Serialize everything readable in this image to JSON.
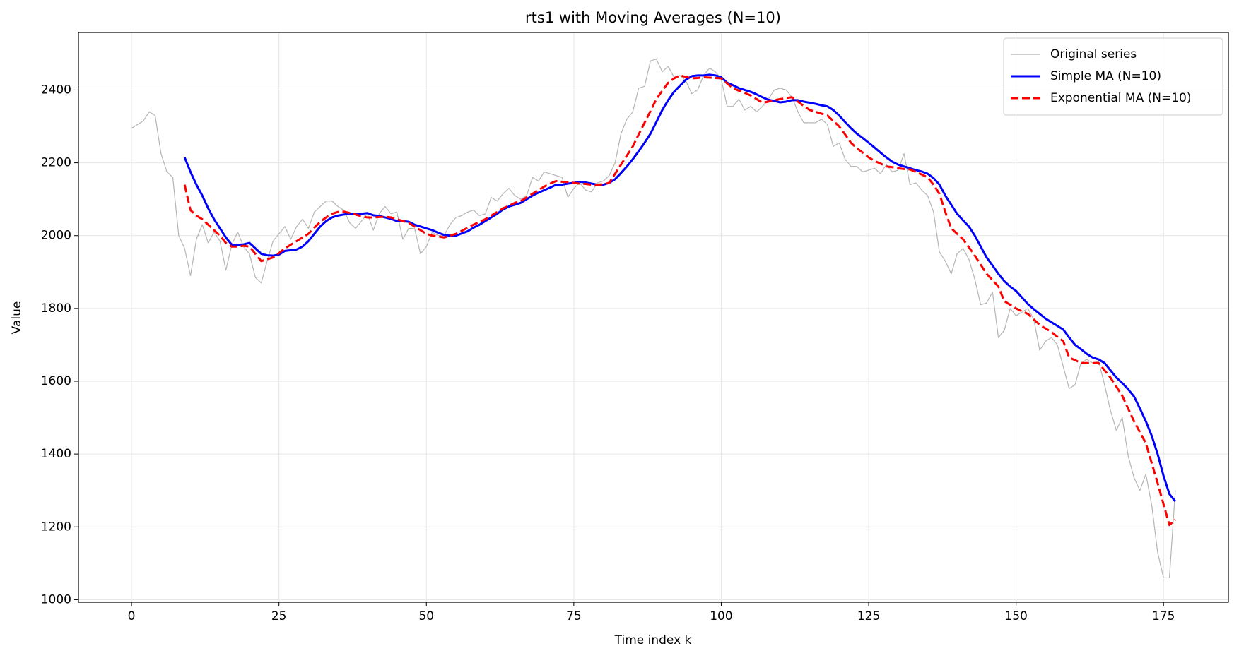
{
  "chart_data": {
    "type": "line",
    "title": "rts1 with Moving Averages (N=10)",
    "x_label": "Time index k",
    "y_label": "Value",
    "xlim": [
      -9,
      186
    ],
    "ylim": [
      993,
      2558
    ],
    "xticks": [
      0,
      25,
      50,
      75,
      100,
      125,
      150,
      175
    ],
    "yticks": [
      1000,
      1200,
      1400,
      1600,
      1800,
      2000,
      2200,
      2400
    ],
    "grid": true,
    "legend": "upper right",
    "x": [
      0,
      1,
      2,
      3,
      4,
      5,
      6,
      7,
      8,
      9,
      10,
      11,
      12,
      13,
      14,
      15,
      16,
      17,
      18,
      19,
      20,
      21,
      22,
      23,
      24,
      25,
      26,
      27,
      28,
      29,
      30,
      31,
      32,
      33,
      34,
      35,
      36,
      37,
      38,
      39,
      40,
      41,
      42,
      43,
      44,
      45,
      46,
      47,
      48,
      49,
      50,
      51,
      52,
      53,
      54,
      55,
      56,
      57,
      58,
      59,
      60,
      61,
      62,
      63,
      64,
      65,
      66,
      67,
      68,
      69,
      70,
      71,
      72,
      73,
      74,
      75,
      76,
      77,
      78,
      79,
      80,
      81,
      82,
      83,
      84,
      85,
      86,
      87,
      88,
      89,
      90,
      91,
      92,
      93,
      94,
      95,
      96,
      97,
      98,
      99,
      100,
      101,
      102,
      103,
      104,
      105,
      106,
      107,
      108,
      109,
      110,
      111,
      112,
      113,
      114,
      115,
      116,
      117,
      118,
      119,
      120,
      121,
      122,
      123,
      124,
      125,
      126,
      127,
      128,
      129,
      130,
      131,
      132,
      133,
      134,
      135,
      136,
      137,
      138,
      139,
      140,
      141,
      142,
      143,
      144,
      145,
      146,
      147,
      148,
      149,
      150,
      151,
      152,
      153,
      154,
      155,
      156,
      157,
      158,
      159,
      160,
      161,
      162,
      163,
      164,
      165,
      166,
      167,
      168,
      169,
      170,
      171,
      172,
      173,
      174,
      175,
      176,
      177
    ],
    "series": [
      {
        "name": "Original series",
        "color": "#b5b5b5",
        "linewidth": 1.2,
        "linestyle": "solid",
        "values": [
          2295,
          2305,
          2315,
          2340,
          2330,
          2225,
          2175,
          2160,
          2000,
          1965,
          1890,
          1990,
          2030,
          1980,
          2010,
          1985,
          1905,
          1975,
          2010,
          1970,
          1950,
          1885,
          1870,
          1930,
          1985,
          2005,
          2025,
          1990,
          2025,
          2045,
          2020,
          2065,
          2080,
          2095,
          2095,
          2080,
          2070,
          2035,
          2020,
          2040,
          2060,
          2015,
          2060,
          2080,
          2060,
          2065,
          1990,
          2020,
          2020,
          1950,
          1970,
          2010,
          2000,
          2000,
          2030,
          2050,
          2055,
          2065,
          2070,
          2055,
          2060,
          2105,
          2095,
          2115,
          2130,
          2110,
          2100,
          2110,
          2160,
          2150,
          2175,
          2170,
          2165,
          2160,
          2105,
          2130,
          2145,
          2125,
          2120,
          2145,
          2150,
          2165,
          2200,
          2280,
          2320,
          2340,
          2405,
          2410,
          2480,
          2485,
          2450,
          2465,
          2435,
          2440,
          2425,
          2390,
          2400,
          2440,
          2460,
          2450,
          2430,
          2355,
          2355,
          2375,
          2345,
          2355,
          2340,
          2355,
          2375,
          2400,
          2405,
          2400,
          2380,
          2340,
          2310,
          2310,
          2310,
          2320,
          2305,
          2245,
          2255,
          2210,
          2190,
          2190,
          2175,
          2180,
          2185,
          2170,
          2195,
          2175,
          2180,
          2225,
          2140,
          2145,
          2125,
          2110,
          2065,
          1955,
          1930,
          1895,
          1950,
          1965,
          1935,
          1880,
          1810,
          1815,
          1845,
          1720,
          1740,
          1800,
          1780,
          1790,
          1800,
          1770,
          1685,
          1710,
          1720,
          1700,
          1640,
          1580,
          1590,
          1650,
          1660,
          1650,
          1655,
          1590,
          1520,
          1465,
          1500,
          1395,
          1335,
          1300,
          1345,
          1260,
          1130,
          1060,
          1060,
          1300
        ]
      },
      {
        "name": "Simple MA (N=10)",
        "color": "#0000ff",
        "linewidth": 3,
        "linestyle": "solid",
        "values": [
          null,
          null,
          null,
          null,
          null,
          null,
          null,
          null,
          null,
          2215,
          2175,
          2140,
          2110,
          2075,
          2045,
          2020,
          1995,
          1975,
          1975,
          1976,
          1980,
          1965,
          1950,
          1946,
          1945,
          1948,
          1958,
          1960,
          1962,
          1970,
          1985,
          2005,
          2025,
          2040,
          2050,
          2055,
          2058,
          2060,
          2060,
          2060,
          2062,
          2056,
          2054,
          2050,
          2046,
          2040,
          2040,
          2038,
          2030,
          2025,
          2020,
          2015,
          2008,
          2002,
          2000,
          2000,
          2006,
          2012,
          2022,
          2030,
          2040,
          2050,
          2060,
          2072,
          2080,
          2085,
          2090,
          2100,
          2110,
          2118,
          2125,
          2132,
          2140,
          2140,
          2143,
          2145,
          2148,
          2146,
          2143,
          2140,
          2140,
          2145,
          2155,
          2172,
          2190,
          2210,
          2232,
          2255,
          2280,
          2312,
          2345,
          2372,
          2395,
          2412,
          2428,
          2438,
          2440,
          2440,
          2442,
          2440,
          2435,
          2420,
          2413,
          2405,
          2400,
          2395,
          2388,
          2380,
          2373,
          2370,
          2366,
          2368,
          2372,
          2372,
          2368,
          2365,
          2362,
          2358,
          2355,
          2345,
          2330,
          2312,
          2295,
          2280,
          2268,
          2255,
          2242,
          2228,
          2215,
          2203,
          2195,
          2190,
          2185,
          2180,
          2176,
          2170,
          2158,
          2140,
          2110,
          2085,
          2060,
          2042,
          2025,
          2000,
          1970,
          1940,
          1918,
          1895,
          1875,
          1860,
          1848,
          1830,
          1812,
          1798,
          1785,
          1772,
          1762,
          1752,
          1742,
          1720,
          1700,
          1688,
          1675,
          1665,
          1660,
          1650,
          1630,
          1610,
          1595,
          1578,
          1558,
          1525,
          1490,
          1450,
          1400,
          1340,
          1290,
          1270
        ]
      },
      {
        "name": "Exponential MA (N=10)",
        "color": "#ff0000",
        "linewidth": 3,
        "linestyle": "dashed",
        "values": [
          null,
          null,
          null,
          null,
          null,
          null,
          null,
          null,
          null,
          2140,
          2070,
          2055,
          2045,
          2030,
          2015,
          2000,
          1980,
          1970,
          1970,
          1972,
          1970,
          1950,
          1930,
          1935,
          1940,
          1952,
          1965,
          1975,
          1985,
          1995,
          2005,
          2022,
          2038,
          2050,
          2060,
          2065,
          2066,
          2062,
          2058,
          2053,
          2050,
          2050,
          2051,
          2052,
          2050,
          2045,
          2040,
          2035,
          2025,
          2015,
          2005,
          2000,
          1998,
          1995,
          2000,
          2005,
          2013,
          2022,
          2030,
          2038,
          2045,
          2055,
          2065,
          2075,
          2082,
          2090,
          2095,
          2105,
          2115,
          2125,
          2135,
          2143,
          2150,
          2148,
          2147,
          2145,
          2143,
          2142,
          2140,
          2140,
          2141,
          2145,
          2170,
          2195,
          2220,
          2245,
          2278,
          2310,
          2342,
          2375,
          2398,
          2420,
          2432,
          2440,
          2436,
          2432,
          2433,
          2435,
          2434,
          2433,
          2432,
          2418,
          2405,
          2398,
          2392,
          2385,
          2375,
          2365,
          2368,
          2372,
          2375,
          2378,
          2380,
          2368,
          2356,
          2345,
          2340,
          2335,
          2330,
          2315,
          2300,
          2278,
          2255,
          2240,
          2228,
          2215,
          2205,
          2198,
          2190,
          2188,
          2185,
          2183,
          2182,
          2175,
          2168,
          2160,
          2140,
          2115,
          2065,
          2020,
          2005,
          1990,
          1968,
          1945,
          1920,
          1895,
          1878,
          1860,
          1820,
          1810,
          1800,
          1792,
          1785,
          1770,
          1755,
          1745,
          1735,
          1722,
          1710,
          1665,
          1658,
          1650,
          1650,
          1650,
          1650,
          1630,
          1610,
          1585,
          1560,
          1525,
          1490,
          1460,
          1430,
          1375,
          1320,
          1262,
          1205,
          1220
        ]
      }
    ]
  }
}
